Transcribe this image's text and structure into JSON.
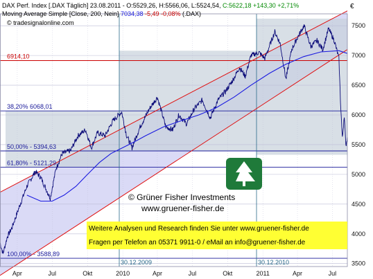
{
  "header": {
    "line1_prefix": "DAX Perf. Index [.DAX Täglich] 23.08.2011 - O:",
    "line1_o": "5529,26",
    "line1_h_label": "H:",
    "line1_h": "5566,06",
    "line1_l_label": "L:",
    "line1_l": "5524,54",
    "line1_c_label": "C:",
    "line1_c": "5622,18",
    "line1_change": "+143,30 +2,71%",
    "line2_prefix": "Moving Average Simple [Close, 200, Nein]",
    "line2_value": "7034,38",
    "line2_change": "-5,49 -0,08%",
    "line2_suffix": "(.DAX)",
    "source": "© tradesignalonline.com",
    "currency": "€"
  },
  "levels": [
    {
      "label": "6914,10",
      "value": 6914.1,
      "color": "#cc0000"
    },
    {
      "label": "38,20%   6068,01",
      "value": 6068.01,
      "color": "#1a1a9a"
    },
    {
      "label": "50,00% - 5394,63",
      "value": 5394.63,
      "color": "#1a1a9a"
    },
    {
      "label": "61,80% - 5121,29",
      "value": 5121.29,
      "color": "#1a1a9a"
    },
    {
      "label": "100,00% - 3588,89",
      "value": 3588.89,
      "color": "#1a1a9a"
    }
  ],
  "date_labels": {
    "left": "30.12.2009",
    "right": "30.12.2010"
  },
  "watermark": {
    "company": "© Grüner Fisher Investments",
    "url": "www.gruener-fisher.de"
  },
  "banner": {
    "line1": "Weitere Analysen und Research finden Sie unter www.gruener-fisher.de",
    "line2": "Fragen per Telefon an 05371 9911-0 / eMail an info@gruener-fisher.de",
    "bg": "#ffff33"
  },
  "colors": {
    "price": "#0a0a78",
    "moving_average": "#1a1ae0",
    "channel": "#e01010",
    "grid": "#bcbcd4",
    "plot_bg": "#ffffff",
    "zone_fill": "#c8d2dc",
    "channel_fill": "#d4d4f4"
  },
  "chart_data": {
    "type": "line",
    "x_tick_labels": [
      "Apr",
      "Jul",
      "Okt",
      "2010",
      "Apr",
      "Jul",
      "Okt",
      "2011",
      "Apr",
      "Jul"
    ],
    "y_ticks": [
      3500,
      4000,
      4500,
      5000,
      5500,
      6000,
      6500,
      7000,
      7500
    ],
    "ylim": [
      3450,
      7700
    ],
    "x_range": [
      "2009-03-01",
      "2011-08-23"
    ],
    "series": [
      {
        "name": "DAX Perf. Index",
        "points": [
          [
            "2009-03-01",
            3850
          ],
          [
            "2009-03-09",
            3666
          ],
          [
            "2009-03-20",
            3950
          ],
          [
            "2009-04-01",
            4100
          ],
          [
            "2009-04-20",
            4450
          ],
          [
            "2009-05-10",
            4800
          ],
          [
            "2009-06-01",
            5050
          ],
          [
            "2009-06-15",
            4950
          ],
          [
            "2009-07-10",
            4600
          ],
          [
            "2009-07-25",
            5100
          ],
          [
            "2009-08-10",
            5350
          ],
          [
            "2009-09-01",
            5400
          ],
          [
            "2009-09-20",
            5650
          ],
          [
            "2009-10-10",
            5750
          ],
          [
            "2009-10-25",
            5450
          ],
          [
            "2009-11-10",
            5700
          ],
          [
            "2009-11-30",
            5650
          ],
          [
            "2009-12-20",
            5900
          ],
          [
            "2010-01-12",
            6050
          ],
          [
            "2010-01-25",
            5650
          ],
          [
            "2010-02-08",
            5450
          ],
          [
            "2010-03-01",
            5800
          ],
          [
            "2010-03-25",
            6100
          ],
          [
            "2010-04-15",
            6300
          ],
          [
            "2010-05-07",
            5800
          ],
          [
            "2010-05-25",
            5750
          ],
          [
            "2010-06-10",
            6000
          ],
          [
            "2010-06-30",
            5850
          ],
          [
            "2010-07-20",
            6100
          ],
          [
            "2010-08-10",
            6250
          ],
          [
            "2010-08-31",
            5950
          ],
          [
            "2010-09-20",
            6250
          ],
          [
            "2010-10-10",
            6400
          ],
          [
            "2010-10-30",
            6600
          ],
          [
            "2010-11-15",
            6800
          ],
          [
            "2010-11-30",
            6650
          ],
          [
            "2010-12-15",
            7000
          ],
          [
            "2011-01-05",
            7050
          ],
          [
            "2011-01-20",
            6950
          ],
          [
            "2011-02-15",
            7400
          ],
          [
            "2011-03-01",
            7200
          ],
          [
            "2011-03-16",
            6600
          ],
          [
            "2011-03-31",
            7100
          ],
          [
            "2011-04-15",
            7300
          ],
          [
            "2011-05-02",
            7500
          ],
          [
            "2011-05-20",
            7150
          ],
          [
            "2011-06-05",
            7250
          ],
          [
            "2011-06-20",
            7100
          ],
          [
            "2011-07-05",
            7450
          ],
          [
            "2011-07-20",
            7250
          ],
          [
            "2011-08-01",
            6950
          ],
          [
            "2011-08-05",
            6250
          ],
          [
            "2011-08-10",
            5600
          ],
          [
            "2011-08-15",
            6000
          ],
          [
            "2011-08-19",
            5480
          ],
          [
            "2011-08-23",
            5622
          ]
        ]
      },
      {
        "name": "Moving Average Simple [Close, 200, Nein]",
        "points": [
          [
            "2009-05-10",
            4650
          ],
          [
            "2009-06-15",
            4550
          ],
          [
            "2009-07-15",
            4550
          ],
          [
            "2009-08-15",
            4650
          ],
          [
            "2009-09-15",
            4800
          ],
          [
            "2009-10-15",
            5000
          ],
          [
            "2009-11-15",
            5200
          ],
          [
            "2009-12-15",
            5350
          ],
          [
            "2010-01-15",
            5450
          ],
          [
            "2010-02-15",
            5550
          ],
          [
            "2010-03-15",
            5650
          ],
          [
            "2010-05-01",
            5800
          ],
          [
            "2010-06-15",
            5900
          ],
          [
            "2010-08-01",
            6000
          ],
          [
            "2010-09-15",
            6120
          ],
          [
            "2010-11-01",
            6300
          ],
          [
            "2010-12-15",
            6500
          ],
          [
            "2011-02-01",
            6700
          ],
          [
            "2011-03-15",
            6850
          ],
          [
            "2011-05-01",
            6980
          ],
          [
            "2011-06-15",
            7060
          ],
          [
            "2011-08-01",
            7080
          ],
          [
            "2011-08-23",
            7034
          ]
        ]
      }
    ],
    "channel": {
      "upper": [
        [
          "2009-03-01",
          4700
        ],
        [
          "2011-08-23",
          7750
        ]
      ],
      "lower": [
        [
          "2009-03-01",
          3300
        ],
        [
          "2011-08-23",
          7100
        ]
      ]
    }
  }
}
